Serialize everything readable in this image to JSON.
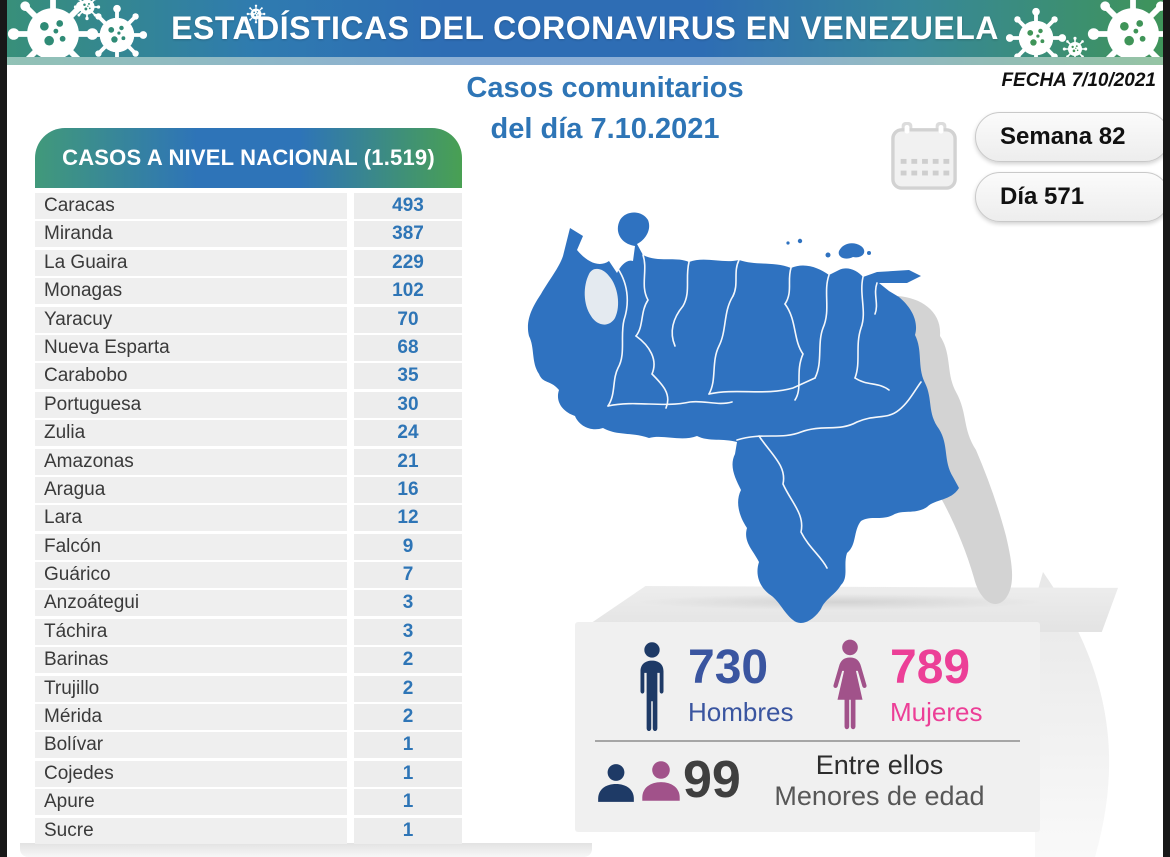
{
  "header": {
    "title": "ESTADÍSTICAS DEL CORONAVIRUS EN VENEZUELA"
  },
  "subtitle": {
    "line1": "Casos comunitarios",
    "line2": "del día 7.10.2021"
  },
  "date_label": "FECHA 7/10/2021",
  "badges": {
    "week": "Semana 82",
    "day": "Día 571"
  },
  "table": {
    "title": "CASOS A NIVEL NACIONAL (1.519)",
    "rows": [
      {
        "state": "Caracas",
        "value": "493"
      },
      {
        "state": "Miranda",
        "value": "387"
      },
      {
        "state": "La Guaira",
        "value": "229"
      },
      {
        "state": "Monagas",
        "value": "102"
      },
      {
        "state": "Yaracuy",
        "value": "70"
      },
      {
        "state": "Nueva Esparta",
        "value": "68"
      },
      {
        "state": "Carabobo",
        "value": "35"
      },
      {
        "state": "Portuguesa",
        "value": "30"
      },
      {
        "state": "Zulia",
        "value": "24"
      },
      {
        "state": "Amazonas",
        "value": "21"
      },
      {
        "state": "Aragua",
        "value": "16"
      },
      {
        "state": "Lara",
        "value": "12"
      },
      {
        "state": "Falcón",
        "value": "9"
      },
      {
        "state": "Guárico",
        "value": "7"
      },
      {
        "state": "Anzoátegui",
        "value": "3"
      },
      {
        "state": "Táchira",
        "value": "3"
      },
      {
        "state": "Barinas",
        "value": "2"
      },
      {
        "state": "Trujillo",
        "value": "2"
      },
      {
        "state": "Mérida",
        "value": "2"
      },
      {
        "state": "Bolívar",
        "value": "1"
      },
      {
        "state": "Cojedes",
        "value": "1"
      },
      {
        "state": "Apure",
        "value": "1"
      },
      {
        "state": "Sucre",
        "value": "1"
      }
    ]
  },
  "stats": {
    "men": {
      "value": "730",
      "label": "Hombres"
    },
    "women": {
      "value": "789",
      "label": "Mujeres"
    },
    "minors": {
      "value": "99",
      "label_line1": "Entre ellos",
      "label_line2": "Menores de edad"
    }
  },
  "icons": {
    "banner": "virus-icon",
    "date": "calendar-icon",
    "men": "man-icon",
    "women": "woman-icon",
    "minors": [
      "male-bust-icon",
      "female-bust-icon"
    ],
    "map": "venezuela-map"
  },
  "colors": {
    "accent_blue": "#2e75b6",
    "band_green": "#3f9458",
    "band_teal": "#389078",
    "band_blue": "#2e6db4",
    "map_blue": "#2f72c0",
    "map_claimed_gray": "#d3d3d3",
    "men_navy": "#1e3a66",
    "men_text": "#3a55a0",
    "women_plum": "#a1528a",
    "women_pink": "#ec3f97",
    "minors_gray": "#3f3f3f"
  },
  "chart_data": {
    "type": "table",
    "title": "CASOS A NIVEL NACIONAL (1.519)",
    "subtitle": "Casos comunitarios del día 7.10.2021",
    "date": "7/10/2021",
    "week": 82,
    "day": 571,
    "total_cases": 1519,
    "categories": [
      "Caracas",
      "Miranda",
      "La Guaira",
      "Monagas",
      "Yaracuy",
      "Nueva Esparta",
      "Carabobo",
      "Portuguesa",
      "Zulia",
      "Amazonas",
      "Aragua",
      "Lara",
      "Falcón",
      "Guárico",
      "Anzoátegui",
      "Táchira",
      "Barinas",
      "Trujillo",
      "Mérida",
      "Bolívar",
      "Cojedes",
      "Apure",
      "Sucre"
    ],
    "values": [
      493,
      387,
      229,
      102,
      70,
      68,
      35,
      30,
      24,
      21,
      16,
      12,
      9,
      7,
      3,
      3,
      2,
      2,
      2,
      1,
      1,
      1,
      1
    ],
    "gender_breakdown": {
      "hombres": 730,
      "mujeres": 789,
      "menores_de_edad": 99
    }
  }
}
